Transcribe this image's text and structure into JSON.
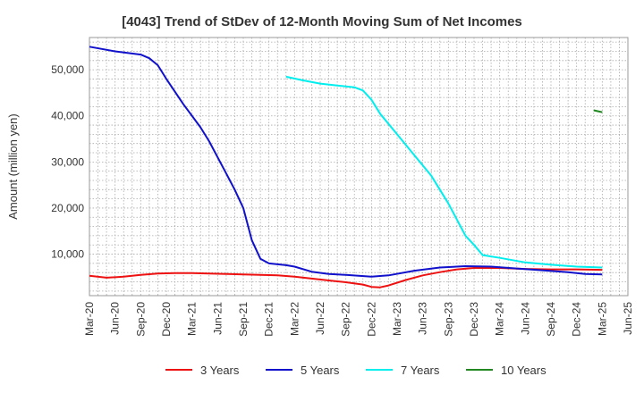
{
  "chart_data": {
    "type": "line",
    "title": "[4043]  Trend of StDev of 12-Month Moving Sum of Net Incomes",
    "ylabel": "Amount (million yen)",
    "xlabel": "",
    "ylim": [
      1000,
      57000
    ],
    "yticks": [
      10000,
      20000,
      30000,
      40000,
      50000
    ],
    "ytick_labels": [
      "10,000",
      "20,000",
      "30,000",
      "40,000",
      "50,000"
    ],
    "xticks": [
      "2020-03",
      "2020-06",
      "2020-09",
      "2020-12",
      "2021-03",
      "2021-06",
      "2021-09",
      "2021-12",
      "2022-03",
      "2022-06",
      "2022-09",
      "2022-12",
      "2023-03",
      "2023-06",
      "2023-09",
      "2023-12",
      "2024-03",
      "2024-06",
      "2024-09",
      "2024-12",
      "2025-03",
      "2025-06"
    ],
    "xtick_labels": [
      "Mar-20",
      "Jun-20",
      "Sep-20",
      "Dec-20",
      "Mar-21",
      "Jun-21",
      "Sep-21",
      "Dec-21",
      "Mar-22",
      "Jun-22",
      "Sep-22",
      "Dec-22",
      "Mar-23",
      "Jun-23",
      "Sep-23",
      "Dec-23",
      "Mar-24",
      "Jun-24",
      "Sep-24",
      "Dec-24",
      "Mar-25",
      "Jun-25"
    ],
    "grid": true,
    "legend_position": "bottom",
    "series": [
      {
        "name": "3 Years",
        "color": "#ee1111",
        "points": [
          [
            "2020-03",
            5300
          ],
          [
            "2020-05",
            4900
          ],
          [
            "2020-07",
            5100
          ],
          [
            "2020-09",
            5500
          ],
          [
            "2020-11",
            5800
          ],
          [
            "2021-01",
            5900
          ],
          [
            "2021-03",
            5900
          ],
          [
            "2021-05",
            5800
          ],
          [
            "2021-07",
            5700
          ],
          [
            "2021-09",
            5600
          ],
          [
            "2021-11",
            5500
          ],
          [
            "2022-01",
            5400
          ],
          [
            "2022-03",
            5100
          ],
          [
            "2022-05",
            4700
          ],
          [
            "2022-07",
            4300
          ],
          [
            "2022-09",
            3900
          ],
          [
            "2022-11",
            3400
          ],
          [
            "2022-12",
            2900
          ],
          [
            "2023-01",
            2800
          ],
          [
            "2023-02",
            3200
          ],
          [
            "2023-04",
            4400
          ],
          [
            "2023-06",
            5400
          ],
          [
            "2023-08",
            6100
          ],
          [
            "2023-10",
            6700
          ],
          [
            "2023-12",
            7000
          ],
          [
            "2024-03",
            7000
          ],
          [
            "2024-06",
            6800
          ],
          [
            "2024-09",
            6700
          ],
          [
            "2024-12",
            6700
          ],
          [
            "2025-03",
            6600
          ]
        ]
      },
      {
        "name": "5 Years",
        "color": "#1111cc",
        "points": [
          [
            "2020-03",
            55000
          ],
          [
            "2020-06",
            54000
          ],
          [
            "2020-09",
            53300
          ],
          [
            "2020-10",
            52500
          ],
          [
            "2020-11",
            51000
          ],
          [
            "2020-12",
            48000
          ],
          [
            "2021-02",
            42500
          ],
          [
            "2021-04",
            37500
          ],
          [
            "2021-05",
            34500
          ],
          [
            "2021-07",
            27500
          ],
          [
            "2021-08",
            24000
          ],
          [
            "2021-09",
            20000
          ],
          [
            "2021-10",
            13000
          ],
          [
            "2021-11",
            9000
          ],
          [
            "2021-12",
            8000
          ],
          [
            "2022-02",
            7600
          ],
          [
            "2022-03",
            7300
          ],
          [
            "2022-05",
            6200
          ],
          [
            "2022-07",
            5700
          ],
          [
            "2022-09",
            5500
          ],
          [
            "2022-12",
            5100
          ],
          [
            "2023-02",
            5400
          ],
          [
            "2023-05",
            6400
          ],
          [
            "2023-08",
            7100
          ],
          [
            "2023-11",
            7400
          ],
          [
            "2024-02",
            7300
          ],
          [
            "2024-05",
            6900
          ],
          [
            "2024-08",
            6500
          ],
          [
            "2024-11",
            6100
          ],
          [
            "2025-01",
            5700
          ],
          [
            "2025-03",
            5600
          ]
        ]
      },
      {
        "name": "7 Years",
        "color": "#00eeee",
        "points": [
          [
            "2022-02",
            48500
          ],
          [
            "2022-04",
            47700
          ],
          [
            "2022-06",
            47000
          ],
          [
            "2022-08",
            46600
          ],
          [
            "2022-10",
            46200
          ],
          [
            "2022-11",
            45500
          ],
          [
            "2022-12",
            43500
          ],
          [
            "2023-01",
            40500
          ],
          [
            "2023-03",
            36000
          ],
          [
            "2023-05",
            31500
          ],
          [
            "2023-07",
            27000
          ],
          [
            "2023-09",
            21000
          ],
          [
            "2023-11",
            14000
          ],
          [
            "2023-12",
            12000
          ],
          [
            "2024-01",
            9800
          ],
          [
            "2024-03",
            9200
          ],
          [
            "2024-06",
            8200
          ],
          [
            "2024-09",
            7700
          ],
          [
            "2024-12",
            7300
          ],
          [
            "2025-03",
            7100
          ]
        ]
      },
      {
        "name": "10 Years",
        "color": "#228822",
        "points": [
          [
            "2025-02",
            41200
          ],
          [
            "2025-03",
            40800
          ]
        ]
      }
    ]
  }
}
